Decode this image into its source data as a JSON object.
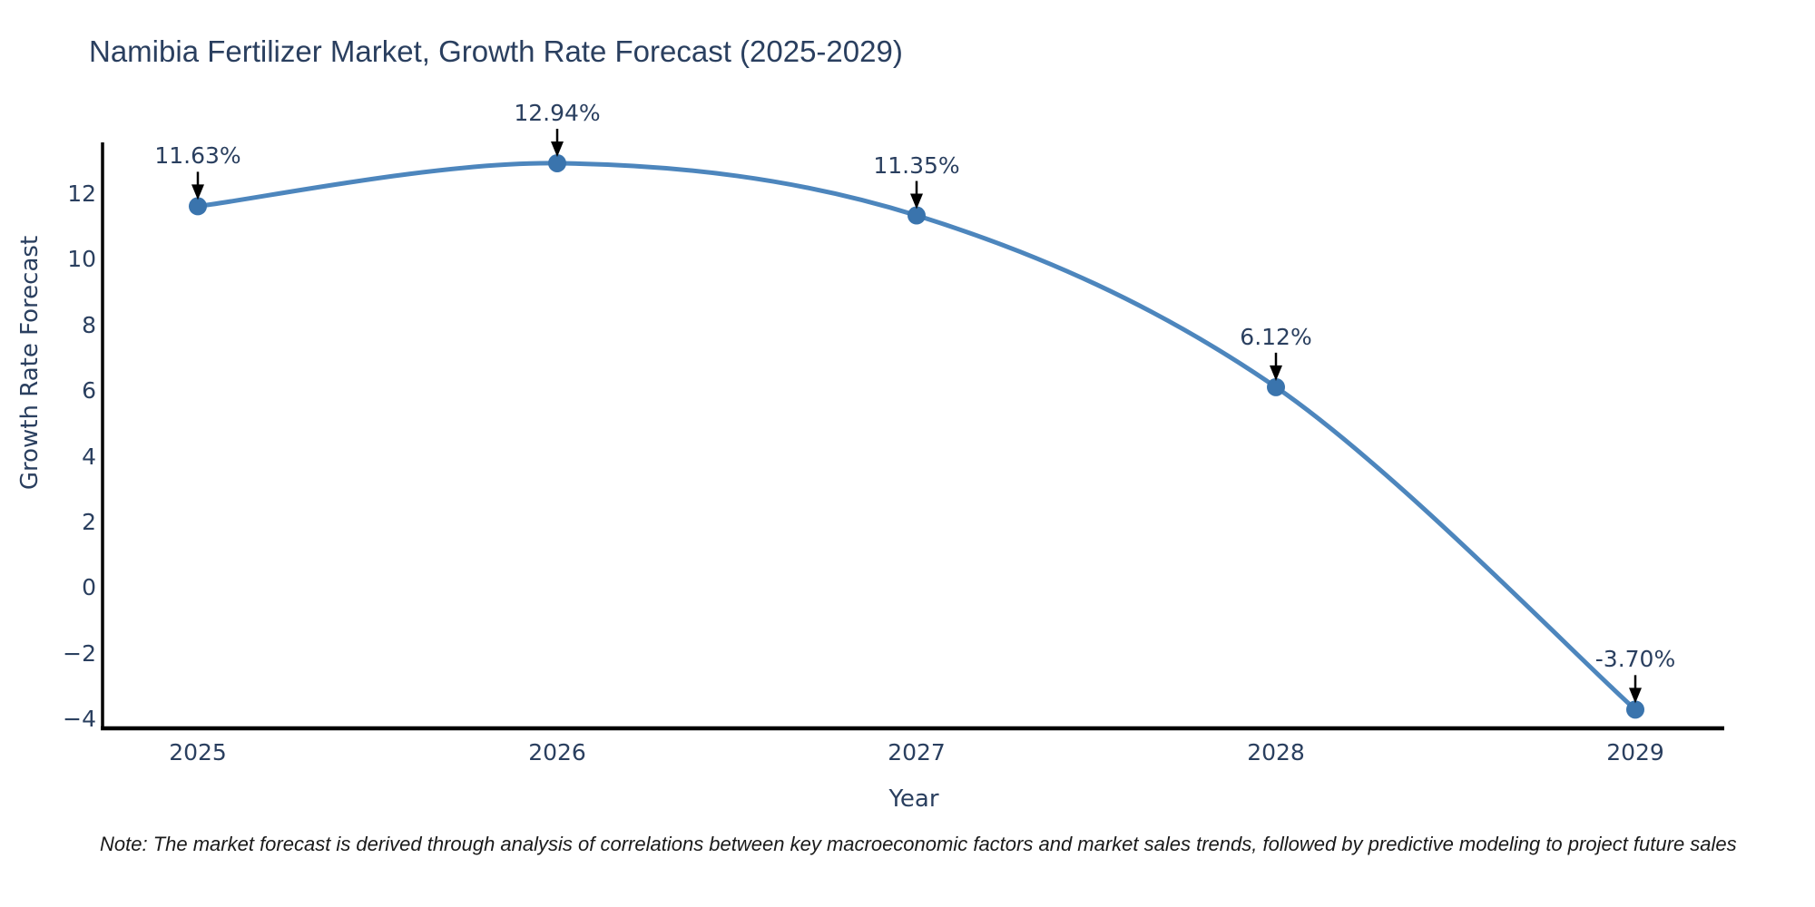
{
  "title": "Namibia Fertilizer Market, Growth Rate Forecast (2025-2029)",
  "note": "Note: The market forecast is derived through analysis of correlations between key macroeconomic factors and market sales trends, followed by predictive modeling to project future sales",
  "chart_data": {
    "type": "line",
    "line_shape": "spline",
    "title": "Namibia Fertilizer Market, Growth Rate Forecast (2025-2029)",
    "xlabel": "Year",
    "ylabel": "Growth Rate Forecast",
    "categories": [
      "2025",
      "2026",
      "2027",
      "2028",
      "2029"
    ],
    "series": [
      {
        "name": "Growth Rate Forecast",
        "values": [
          11.63,
          12.94,
          11.35,
          6.12,
          -3.7
        ]
      }
    ],
    "annotations": [
      "11.63%",
      "12.94%",
      "11.35%",
      "6.12%",
      "-3.70%"
    ],
    "ylim": [
      -4,
      12
    ],
    "ytick_values": [
      12,
      10,
      8,
      6,
      4,
      2,
      0,
      -2,
      -4
    ],
    "ytick_labels": [
      "12",
      "10",
      "8",
      "6",
      "4",
      "2",
      "0",
      "−2",
      "−4"
    ],
    "grid": false,
    "legend": "none",
    "colors": {
      "line": "#4d86bd",
      "marker": "#3a74ad",
      "axis": "#000000",
      "text": "#2a3f5f",
      "annotation_arrow": "#000000"
    }
  }
}
